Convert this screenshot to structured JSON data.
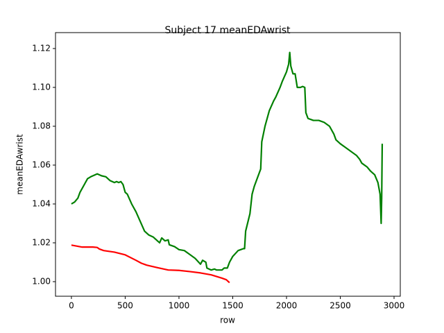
{
  "chart_data": {
    "type": "line",
    "title": "Subject 17 meanEDAwrist",
    "x_label": "row",
    "y_label": "meanEDAwrist",
    "xlim": [
      -148,
      3058
    ],
    "ylim": [
      0.9925,
      1.1282
    ],
    "xticks": [
      0,
      500,
      1000,
      1500,
      2000,
      2500,
      3000
    ],
    "yticks": [
      {
        "value": 1.0,
        "label": "1.00"
      },
      1.02,
      1.04,
      1.06,
      1.08,
      {
        "value": 1.1,
        "label": "1.10"
      },
      1.12
    ],
    "grid": false,
    "series": [
      {
        "color": "#008000",
        "x": [
          0,
          30,
          60,
          80,
          120,
          150,
          180,
          220,
          240,
          280,
          320,
          360,
          400,
          420,
          440,
          460,
          480,
          500,
          520,
          560,
          600,
          640,
          680,
          720,
          760,
          800,
          820,
          840,
          870,
          900,
          910,
          960,
          1000,
          1050,
          1100,
          1150,
          1200,
          1220,
          1250,
          1260,
          1300,
          1330,
          1350,
          1400,
          1420,
          1450,
          1470,
          1500,
          1550,
          1600,
          1610,
          1620,
          1660,
          1680,
          1700,
          1740,
          1760,
          1770,
          1800,
          1840,
          1880,
          1900,
          1940,
          1960,
          2000,
          2020,
          2030,
          2040,
          2060,
          2080,
          2100,
          2130,
          2150,
          2170,
          2180,
          2200,
          2250,
          2300,
          2350,
          2400,
          2440,
          2460,
          2500,
          2550,
          2600,
          2650,
          2680,
          2700,
          2750,
          2780,
          2820,
          2850,
          2870,
          2880,
          2885,
          2890
        ],
        "values": [
          1.04,
          1.041,
          1.043,
          1.046,
          1.05,
          1.053,
          1.054,
          1.055,
          1.0555,
          1.0545,
          1.054,
          1.052,
          1.051,
          1.0515,
          1.051,
          1.0515,
          1.05,
          1.046,
          1.045,
          1.04,
          1.036,
          1.031,
          1.026,
          1.024,
          1.023,
          1.021,
          1.02,
          1.0225,
          1.021,
          1.0215,
          1.019,
          1.018,
          1.0165,
          1.016,
          1.014,
          1.012,
          1.009,
          1.011,
          1.01,
          1.007,
          1.006,
          1.0065,
          1.006,
          1.006,
          1.007,
          1.007,
          1.01,
          1.013,
          1.016,
          1.017,
          1.017,
          1.026,
          1.035,
          1.045,
          1.049,
          1.055,
          1.058,
          1.072,
          1.08,
          1.088,
          1.093,
          1.095,
          1.1,
          1.103,
          1.108,
          1.112,
          1.118,
          1.111,
          1.107,
          1.107,
          1.1,
          1.1,
          1.1005,
          1.1,
          1.087,
          1.084,
          1.083,
          1.083,
          1.082,
          1.08,
          1.076,
          1.073,
          1.071,
          1.069,
          1.067,
          1.065,
          1.063,
          1.061,
          1.059,
          1.057,
          1.055,
          1.051,
          1.045,
          1.03,
          1.043,
          1.071
        ]
      },
      {
        "color": "#ff0000",
        "x": [
          0,
          100,
          200,
          240,
          260,
          300,
          400,
          500,
          600,
          650,
          700,
          800,
          900,
          1000,
          1100,
          1200,
          1300,
          1400,
          1440,
          1470
        ],
        "values": [
          1.0188,
          1.0178,
          1.0178,
          1.0176,
          1.0168,
          1.016,
          1.0152,
          1.0138,
          1.011,
          1.0095,
          1.0085,
          1.0072,
          1.006,
          1.0058,
          1.0052,
          1.0045,
          1.0035,
          1.0018,
          1.001,
          0.9995
        ]
      }
    ]
  }
}
